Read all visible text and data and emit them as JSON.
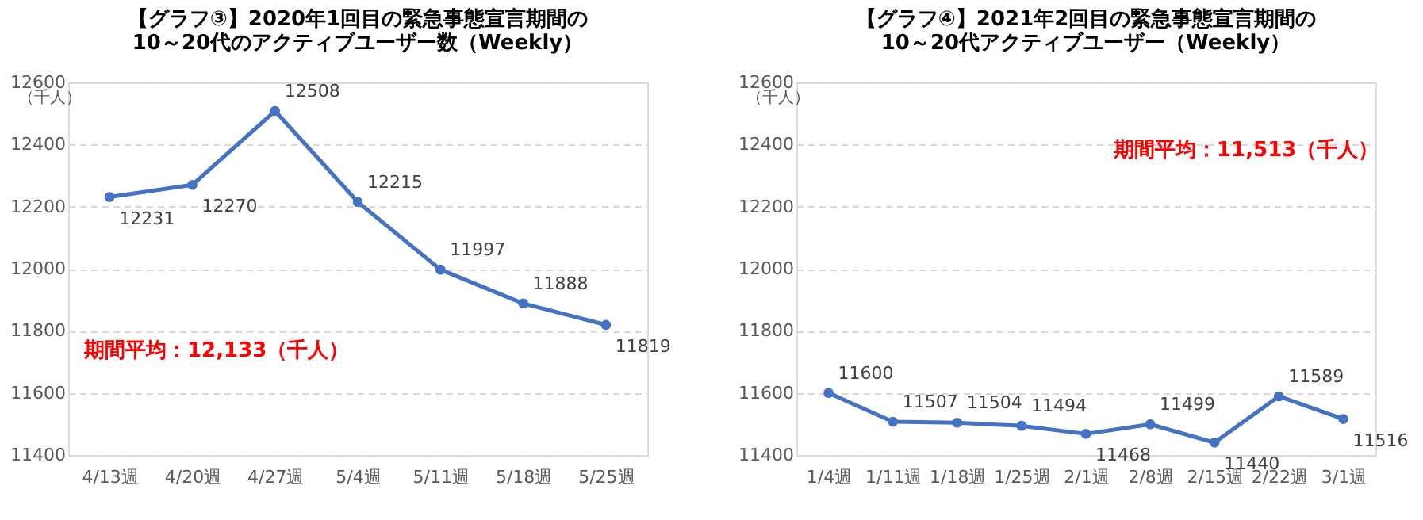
{
  "chart_data": [
    {
      "type": "line",
      "title": [
        "【グラフ③】2020年1回目の緊急事態宣言期間の",
        "10～20代のアクティブユーザー数（Weekly）"
      ],
      "ylabel": "（千人）",
      "categories": [
        "4/13週",
        "4/20週",
        "4/27週",
        "5/4週",
        "5/11週",
        "5/18週",
        "5/25週"
      ],
      "series": [
        {
          "color": "#4472c4",
          "values": [
            12231,
            12270,
            12508,
            12215,
            11997,
            11888,
            11819
          ]
        }
      ],
      "ylim": [
        11400,
        12600
      ],
      "yticks": [
        11400,
        11600,
        11800,
        12000,
        12200,
        12400,
        12600
      ],
      "grid": "y",
      "marker": "circle",
      "line_style": "solid",
      "data_labels": true,
      "annotations": [
        "期間平均：12,133（千人）"
      ]
    },
    {
      "type": "line",
      "title": [
        "【グラフ④】2021年2回目の緊急事態宣言期間の",
        "10～20代アクティブユーザー（Weekly）"
      ],
      "ylabel": "（千人）",
      "categories": [
        "1/4週",
        "1/11週",
        "1/18週",
        "1/25週",
        "2/1週",
        "2/8週",
        "2/15週",
        "2/22週",
        "3/1週"
      ],
      "series": [
        {
          "color": "#4472c4",
          "values": [
            11600,
            11507,
            11504,
            11494,
            11468,
            11499,
            11440,
            11589,
            11516
          ]
        }
      ],
      "ylim": [
        11400,
        12600
      ],
      "yticks": [
        11400,
        11600,
        11800,
        12000,
        12200,
        12400,
        12600
      ],
      "grid": "y",
      "marker": "circle",
      "line_style": "solid",
      "data_labels": true,
      "annotations": [
        "期間平均：11,513（千人）"
      ]
    }
  ]
}
